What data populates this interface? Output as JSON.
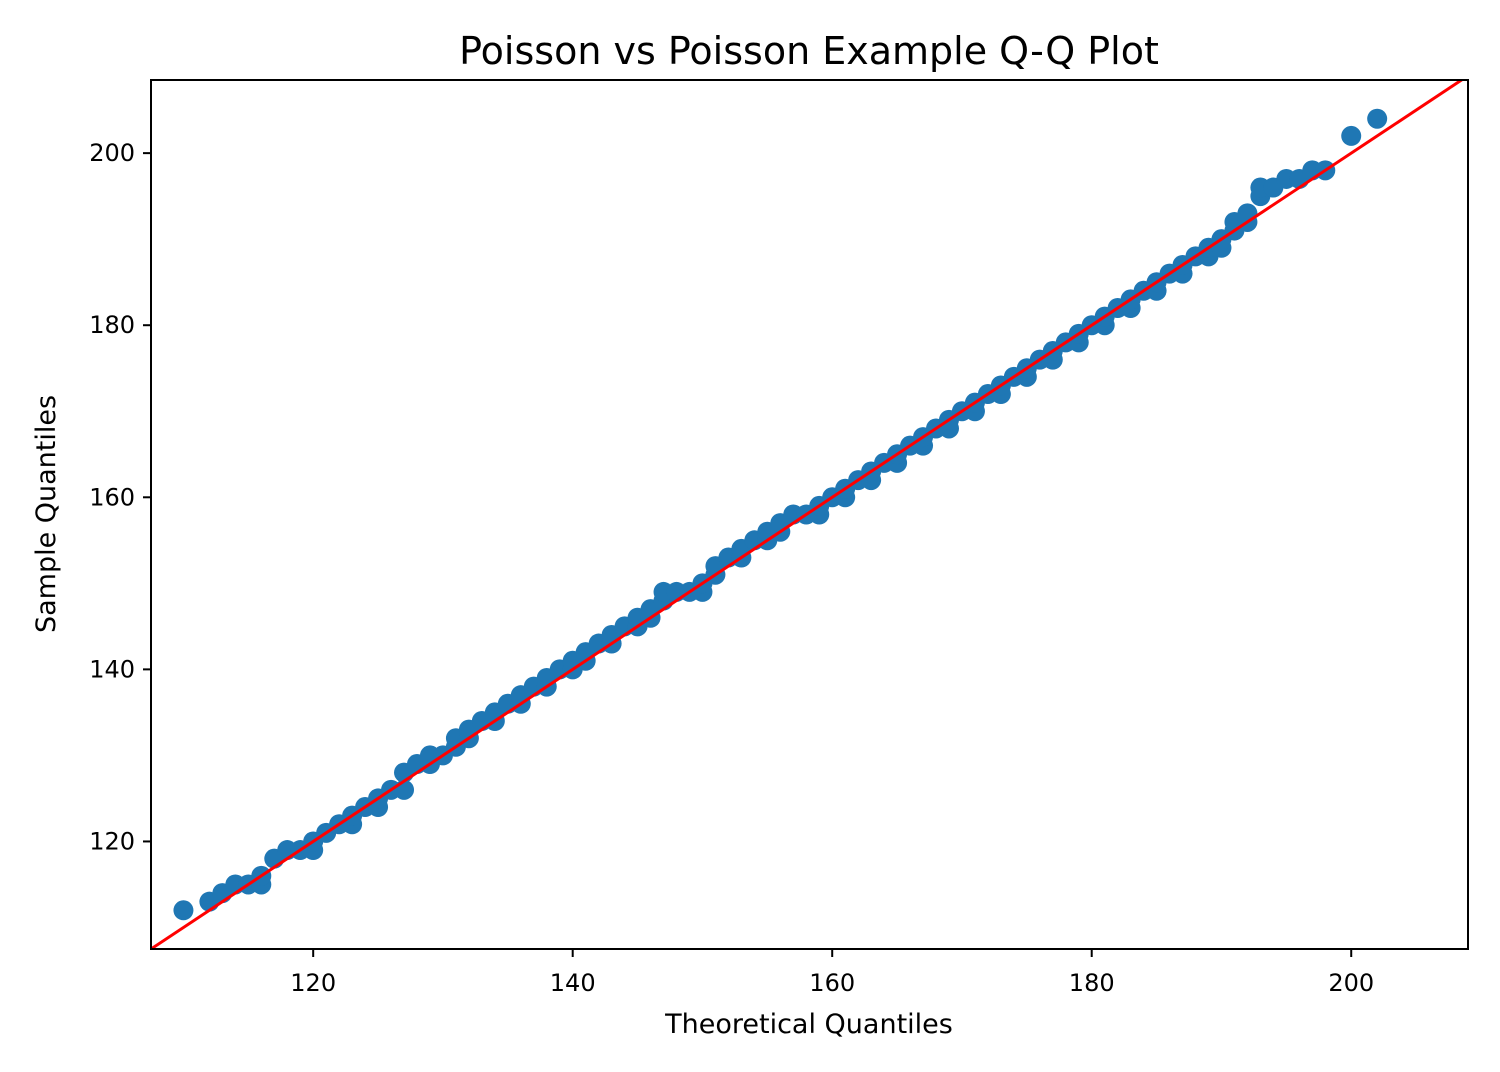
{
  "chart_data": {
    "type": "scatter",
    "title": "Poisson vs Poisson Example Q-Q Plot",
    "xlabel": "Theoretical Quantiles",
    "ylabel": "Sample Quantiles",
    "xlim": [
      107.5,
      209
    ],
    "ylim": [
      107.5,
      208.5
    ],
    "xticks": [
      120,
      140,
      160,
      180,
      200
    ],
    "yticks": [
      120,
      140,
      160,
      180,
      200
    ],
    "grid": false,
    "legend": "none",
    "point_color": "#1f77b4",
    "reference_line": {
      "color": "#ff0000",
      "from": [
        107.5,
        107.5
      ],
      "to": [
        209,
        209
      ]
    },
    "points": [
      [
        110,
        112
      ],
      [
        112,
        113
      ],
      [
        113,
        114
      ],
      [
        114,
        115
      ],
      [
        115,
        115
      ],
      [
        116,
        115
      ],
      [
        116,
        116
      ],
      [
        117,
        118
      ],
      [
        118,
        119
      ],
      [
        119,
        119
      ],
      [
        120,
        119
      ],
      [
        120,
        120
      ],
      [
        121,
        121
      ],
      [
        122,
        122
      ],
      [
        123,
        122
      ],
      [
        123,
        123
      ],
      [
        124,
        124
      ],
      [
        125,
        124
      ],
      [
        125,
        125
      ],
      [
        126,
        126
      ],
      [
        127,
        126
      ],
      [
        127,
        128
      ],
      [
        128,
        129
      ],
      [
        129,
        129
      ],
      [
        129,
        130
      ],
      [
        130,
        130
      ],
      [
        131,
        131
      ],
      [
        131,
        132
      ],
      [
        132,
        132
      ],
      [
        132,
        133
      ],
      [
        133,
        134
      ],
      [
        134,
        134
      ],
      [
        134,
        135
      ],
      [
        135,
        136
      ],
      [
        136,
        136
      ],
      [
        136,
        137
      ],
      [
        137,
        138
      ],
      [
        138,
        138
      ],
      [
        138,
        139
      ],
      [
        139,
        140
      ],
      [
        140,
        140
      ],
      [
        140,
        141
      ],
      [
        141,
        141
      ],
      [
        141,
        142
      ],
      [
        142,
        143
      ],
      [
        143,
        143
      ],
      [
        143,
        144
      ],
      [
        144,
        145
      ],
      [
        145,
        145
      ],
      [
        145,
        146
      ],
      [
        146,
        146
      ],
      [
        146,
        147
      ],
      [
        147,
        148
      ],
      [
        147,
        149
      ],
      [
        148,
        149
      ],
      [
        149,
        149
      ],
      [
        150,
        149
      ],
      [
        150,
        150
      ],
      [
        151,
        151
      ],
      [
        151,
        152
      ],
      [
        152,
        153
      ],
      [
        153,
        153
      ],
      [
        153,
        154
      ],
      [
        154,
        155
      ],
      [
        155,
        155
      ],
      [
        155,
        156
      ],
      [
        156,
        156
      ],
      [
        156,
        157
      ],
      [
        157,
        158
      ],
      [
        158,
        158
      ],
      [
        159,
        158
      ],
      [
        159,
        159
      ],
      [
        160,
        160
      ],
      [
        161,
        160
      ],
      [
        161,
        161
      ],
      [
        162,
        162
      ],
      [
        163,
        162
      ],
      [
        163,
        163
      ],
      [
        164,
        164
      ],
      [
        165,
        164
      ],
      [
        165,
        165
      ],
      [
        166,
        166
      ],
      [
        167,
        166
      ],
      [
        167,
        167
      ],
      [
        168,
        168
      ],
      [
        169,
        168
      ],
      [
        169,
        169
      ],
      [
        170,
        170
      ],
      [
        171,
        170
      ],
      [
        171,
        171
      ],
      [
        172,
        172
      ],
      [
        173,
        172
      ],
      [
        173,
        173
      ],
      [
        174,
        174
      ],
      [
        175,
        174
      ],
      [
        175,
        175
      ],
      [
        176,
        176
      ],
      [
        177,
        176
      ],
      [
        177,
        177
      ],
      [
        178,
        178
      ],
      [
        179,
        178
      ],
      [
        179,
        179
      ],
      [
        180,
        180
      ],
      [
        181,
        180
      ],
      [
        181,
        181
      ],
      [
        182,
        182
      ],
      [
        183,
        182
      ],
      [
        183,
        183
      ],
      [
        184,
        184
      ],
      [
        185,
        184
      ],
      [
        185,
        185
      ],
      [
        186,
        186
      ],
      [
        187,
        186
      ],
      [
        187,
        187
      ],
      [
        188,
        188
      ],
      [
        189,
        188
      ],
      [
        189,
        189
      ],
      [
        190,
        190
      ],
      [
        190,
        189
      ],
      [
        191,
        191
      ],
      [
        191,
        192
      ],
      [
        192,
        192
      ],
      [
        192,
        193
      ],
      [
        193,
        195
      ],
      [
        193,
        196
      ],
      [
        194,
        196
      ],
      [
        195,
        197
      ],
      [
        196,
        197
      ],
      [
        197,
        198
      ],
      [
        198,
        198
      ],
      [
        200,
        202
      ],
      [
        202,
        204
      ]
    ]
  }
}
